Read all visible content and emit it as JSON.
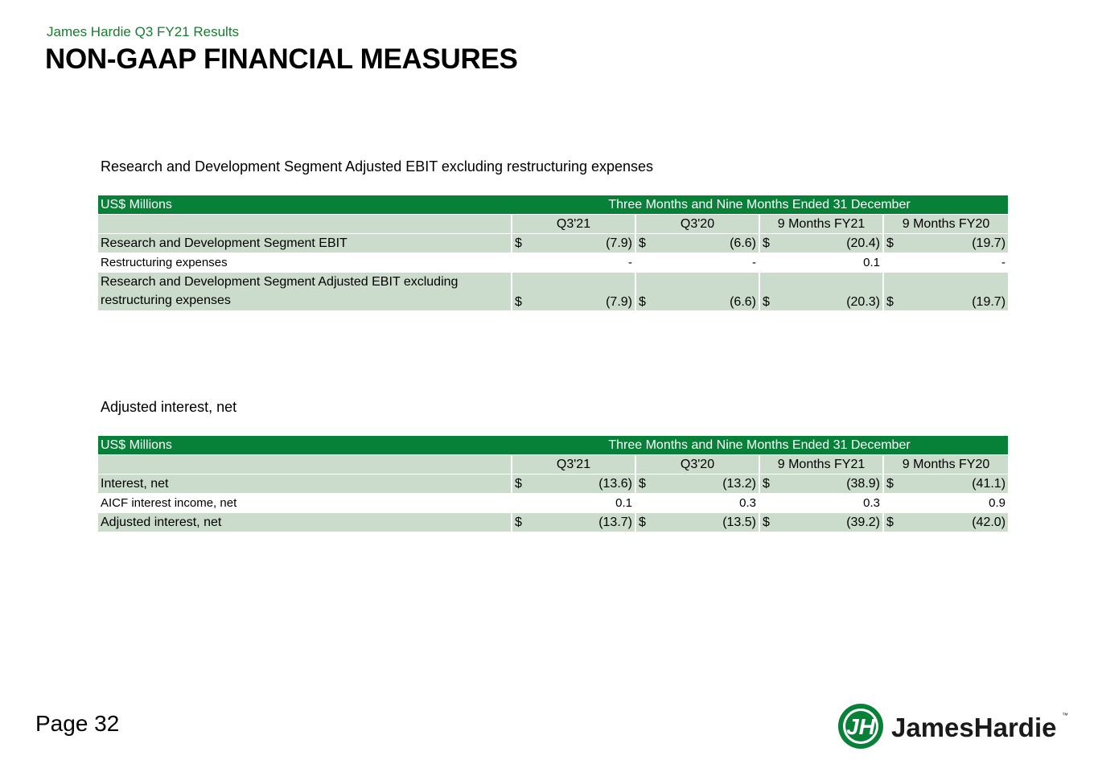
{
  "header": {
    "subtitle": "James Hardie Q3 FY21 Results",
    "title": "NON-GAAP FINANCIAL MEASURES"
  },
  "section1": {
    "title": "Research and Development Segment Adjusted EBIT excluding restructuring expenses",
    "unit_label": "US$ Millions",
    "period_label": "Three Months and Nine Months Ended 31 December",
    "columns": [
      "Q3'21",
      "Q3'20",
      "9 Months FY21",
      "9 Months FY20"
    ],
    "rows": [
      {
        "label": "Research and Development Segment EBIT",
        "values": [
          "(7.9)",
          "(6.6)",
          "(20.4)",
          "(19.7)"
        ],
        "currency": "$"
      },
      {
        "label": "Restructuring expenses",
        "values": [
          "-",
          "-",
          "0.1",
          "-"
        ],
        "currency": ""
      },
      {
        "label": "Research and Development Segment Adjusted EBIT excluding restructuring expenses",
        "values": [
          "(7.9)",
          "(6.6)",
          "(20.3)",
          "(19.7)"
        ],
        "currency": "$"
      }
    ]
  },
  "section2": {
    "title": "Adjusted interest, net",
    "unit_label": "US$ Millions",
    "period_label": "Three Months and Nine Months Ended 31 December",
    "columns": [
      "Q3'21",
      "Q3'20",
      "9 Months FY21",
      "9 Months FY20"
    ],
    "rows": [
      {
        "label": "Interest, net",
        "values": [
          "(13.6)",
          "(13.2)",
          "(38.9)",
          "(41.1)"
        ],
        "currency": "$"
      },
      {
        "label": "AICF interest income, net",
        "values": [
          "0.1",
          "0.3",
          "0.3",
          "0.9"
        ],
        "currency": ""
      },
      {
        "label": "Adjusted interest, net",
        "values": [
          "(13.7)",
          "(13.5)",
          "(39.2)",
          "(42.0)"
        ],
        "currency": "$"
      }
    ]
  },
  "footer": {
    "page": "Page 32",
    "logo_initials": "JH",
    "logo_text": "JamesHardie",
    "logo_tm": "™"
  },
  "colors": {
    "brand_green": "#078138",
    "row_shade": "#ccdccc",
    "subtitle_green": "#1a7a32"
  }
}
